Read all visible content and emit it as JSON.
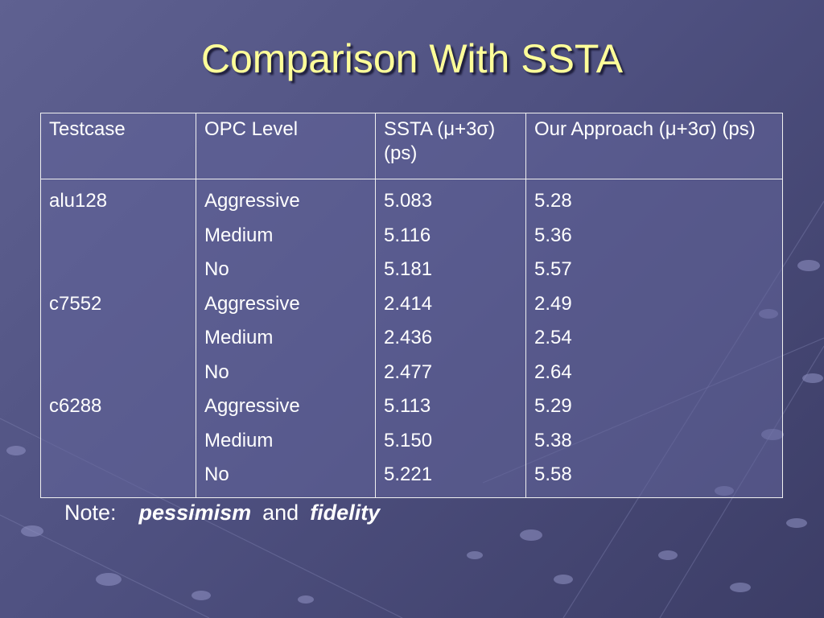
{
  "slide": {
    "title": "Comparison With SSTA",
    "colors": {
      "title": "#ffff99",
      "text": "#ffffff",
      "background": "#55578a"
    }
  },
  "table": {
    "headers": [
      "Testcase",
      "OPC Level",
      "SSTA (μ+3σ) (ps)",
      "Our Approach (μ+3σ) (ps)"
    ],
    "rows": [
      {
        "testcase": "alu128",
        "opc": "Aggressive",
        "ssta": "5.083",
        "ours": "5.28"
      },
      {
        "testcase": "",
        "opc": "Medium",
        "ssta": "5.116",
        "ours": "5.36"
      },
      {
        "testcase": "",
        "opc": "No",
        "ssta": "5.181",
        "ours": "5.57"
      },
      {
        "testcase": "c7552",
        "opc": "Aggressive",
        "ssta": "2.414",
        "ours": "2.49"
      },
      {
        "testcase": "",
        "opc": "Medium",
        "ssta": "2.436",
        "ours": "2.54"
      },
      {
        "testcase": "",
        "opc": "No",
        "ssta": "2.477",
        "ours": "2.64"
      },
      {
        "testcase": "c6288",
        "opc": "Aggressive",
        "ssta": "5.113",
        "ours": "5.29"
      },
      {
        "testcase": "",
        "opc": "Medium",
        "ssta": "5.150",
        "ours": "5.38"
      },
      {
        "testcase": "",
        "opc": "No",
        "ssta": "5.221",
        "ours": "5.58"
      }
    ]
  },
  "note": {
    "label": "Note:",
    "word1": "pessimism",
    "conjunction": "and",
    "word2": "fidelity"
  }
}
